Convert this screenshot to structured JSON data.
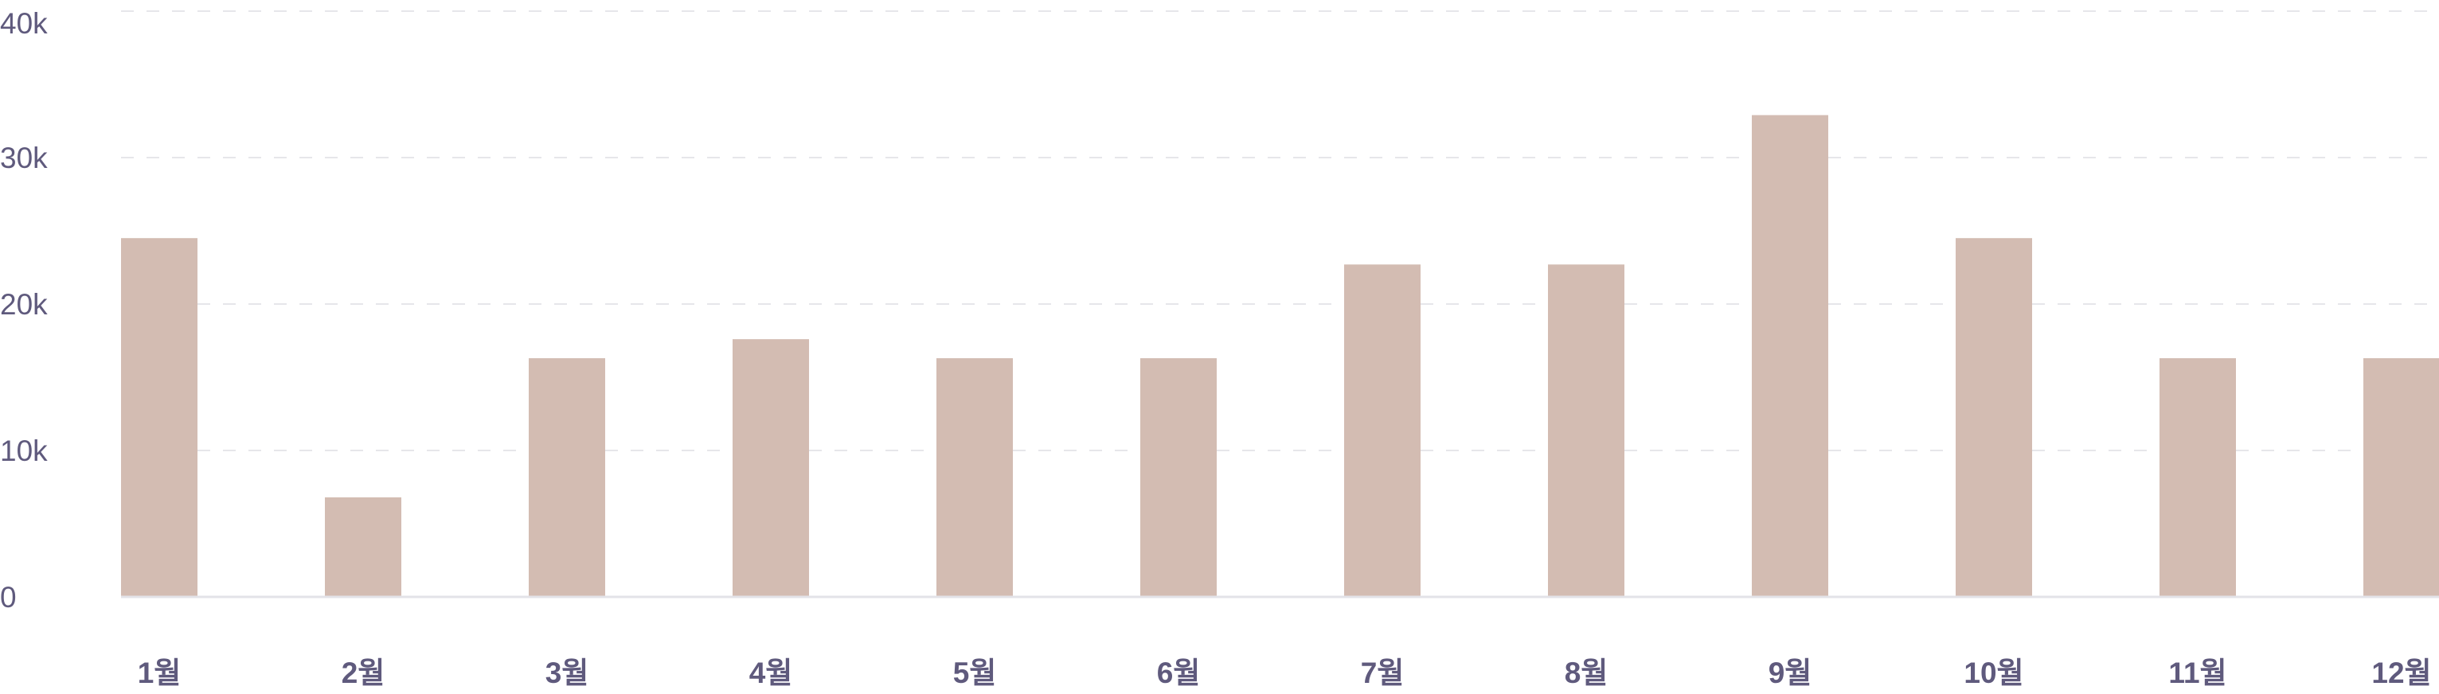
{
  "chart_data": {
    "type": "bar",
    "title": "",
    "xlabel": "",
    "ylabel": "",
    "categories": [
      "1월",
      "2월",
      "3월",
      "4월",
      "5월",
      "6월",
      "7월",
      "8월",
      "9월",
      "10월",
      "11월",
      "12월"
    ],
    "values": [
      24500,
      6800,
      16300,
      17600,
      16300,
      16300,
      22700,
      22700,
      32900,
      24500,
      16300,
      16300
    ],
    "ylim": [
      0,
      40000
    ],
    "y_ticks": [
      0,
      10000,
      20000,
      30000,
      40000
    ],
    "y_tick_labels": [
      "0",
      "10k",
      "20k",
      "30k",
      "40k"
    ],
    "grid": true,
    "legend": "none",
    "colors": {
      "bar": "#d3bcb2",
      "grid": "#e6e6ea",
      "baseline": "#e3e3e8",
      "text": "#5f5a7d"
    }
  }
}
